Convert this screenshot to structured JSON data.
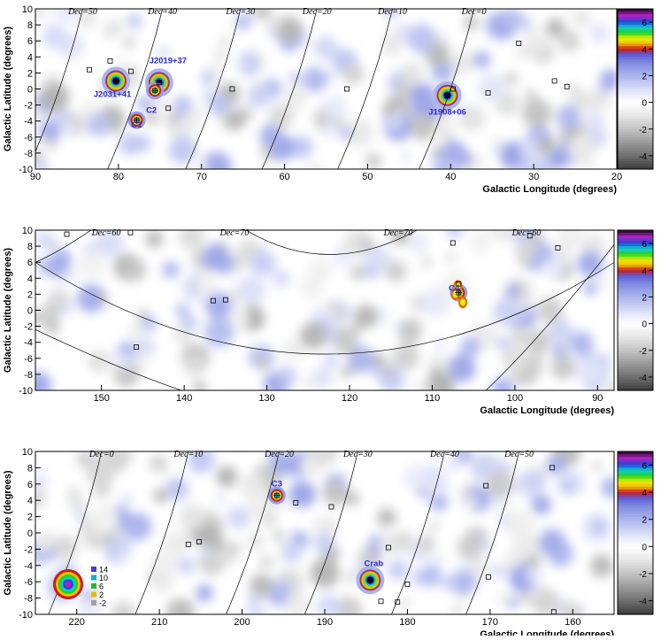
{
  "chart_data": [
    {
      "type": "heatmap",
      "xlabel": "Galactic Longitude (degrees)",
      "ylabel": "Galactic Latitude (degrees)",
      "xlim": [
        90,
        20
      ],
      "ylim": [
        -10,
        10
      ],
      "x_ticks": [
        90,
        80,
        70,
        60,
        50,
        40,
        30,
        20
      ],
      "y_ticks": [
        10,
        8,
        6,
        4,
        2,
        0,
        -2,
        -4,
        -6,
        -8,
        -10
      ],
      "colorbar_ticks": [
        6,
        4,
        2,
        0,
        -2,
        -4
      ],
      "declination_lines": [
        {
          "label": "Dec=50",
          "x_top": 84.3
        },
        {
          "label": "Dec=40",
          "x_top": 74.7
        },
        {
          "label": "Dec=30",
          "x_top": 65.3
        },
        {
          "label": "Dec=20",
          "x_top": 56.1
        },
        {
          "label": "Dec=10",
          "x_top": 47.0
        },
        {
          "label": "Dec=0",
          "x_top": 37.2
        }
      ],
      "labeled_sources": [
        {
          "label": "J2031+41",
          "x": 80.3,
          "y": 1.0
        },
        {
          "label": "J2019+37",
          "x": 75.1,
          "y": 0.8
        },
        {
          "label": "C2",
          "x": 75.6,
          "y": -0.2
        },
        {
          "label": "C1",
          "x": 77.8,
          "y": -3.9
        },
        {
          "label": "J1908+06",
          "x": 40.4,
          "y": -0.8
        }
      ],
      "other_markers": [
        {
          "x": 83.5,
          "y": 2.4
        },
        {
          "x": 81.0,
          "y": 3.5
        },
        {
          "x": 78.5,
          "y": 2.2
        },
        {
          "x": 74.0,
          "y": -2.4
        },
        {
          "x": 66.3,
          "y": 0.0
        },
        {
          "x": 52.5,
          "y": 0.0
        },
        {
          "x": 39.7,
          "y": 0.0
        },
        {
          "x": 35.5,
          "y": -0.5
        },
        {
          "x": 31.8,
          "y": 5.7
        },
        {
          "x": 27.5,
          "y": 1.0
        },
        {
          "x": 26.0,
          "y": 0.3
        }
      ]
    },
    {
      "type": "heatmap",
      "xlabel": "Galactic Longitude (degrees)",
      "ylabel": "Galactic Latitude (degrees)",
      "xlim": [
        158,
        88
      ],
      "ylim": [
        -10,
        10
      ],
      "x_ticks": [
        150,
        140,
        130,
        120,
        110,
        100,
        90
      ],
      "y_ticks": [
        10,
        8,
        6,
        4,
        2,
        0,
        -2,
        -4,
        -6,
        -8,
        -10
      ],
      "colorbar_ticks": [
        6,
        4,
        2,
        0,
        -2,
        -4
      ],
      "declination_labels": [
        "Dec=60",
        "Dec=70",
        "Dec=70",
        "Dec=60"
      ],
      "labeled_sources": [
        {
          "label": "C4",
          "x": 106.8,
          "y": 2.2
        }
      ],
      "other_markers": [
        {
          "x": 154.2,
          "y": 9.5
        },
        {
          "x": 146.5,
          "y": 9.7
        },
        {
          "x": 107.5,
          "y": 8.4
        },
        {
          "x": 98.2,
          "y": 9.3
        },
        {
          "x": 94.8,
          "y": 7.8
        },
        {
          "x": 136.5,
          "y": 1.2
        },
        {
          "x": 135.0,
          "y": 1.3
        },
        {
          "x": 145.8,
          "y": -4.6
        },
        {
          "x": 106.8,
          "y": 3.3
        }
      ]
    },
    {
      "type": "heatmap",
      "xlabel": "Galactic Longitude (degrees)",
      "ylabel": "Galactic Latitude (degrees)",
      "xlim": [
        225,
        155
      ],
      "ylim": [
        -10,
        10
      ],
      "x_ticks": [
        220,
        210,
        200,
        190,
        180,
        170,
        160
      ],
      "y_ticks": [
        10,
        8,
        6,
        4,
        2,
        0,
        -2,
        -4,
        -6,
        -8,
        -10
      ],
      "colorbar_ticks": [
        6,
        4,
        2,
        0,
        -2,
        -4
      ],
      "inset_scale_ticks": [
        14,
        10,
        6,
        2,
        -2
      ],
      "declination_lines": [
        {
          "label": "Dec=0",
          "x_top": 217.0
        },
        {
          "label": "Dec=10",
          "x_top": 206.5
        },
        {
          "label": "Dec=20",
          "x_top": 195.5
        },
        {
          "label": "Dec=30",
          "x_top": 186.0
        },
        {
          "label": "Dec=40",
          "x_top": 175.5
        },
        {
          "label": "Dec=50",
          "x_top": 166.5
        }
      ],
      "labeled_sources": [
        {
          "label": "C3",
          "x": 195.8,
          "y": 4.6
        },
        {
          "label": "Crab",
          "x": 184.5,
          "y": -5.8
        }
      ],
      "other_markers": [
        {
          "x": 193.5,
          "y": 3.7
        },
        {
          "x": 189.2,
          "y": 3.2
        },
        {
          "x": 206.5,
          "y": -1.4
        },
        {
          "x": 205.2,
          "y": -1.1
        },
        {
          "x": 182.3,
          "y": -1.8
        },
        {
          "x": 170.5,
          "y": 5.8
        },
        {
          "x": 162.5,
          "y": 8.0
        },
        {
          "x": 180.0,
          "y": -6.3
        },
        {
          "x": 170.2,
          "y": -5.4
        },
        {
          "x": 183.2,
          "y": -8.4
        },
        {
          "x": 181.2,
          "y": -8.5
        },
        {
          "x": 162.3,
          "y": -9.7
        }
      ]
    }
  ]
}
